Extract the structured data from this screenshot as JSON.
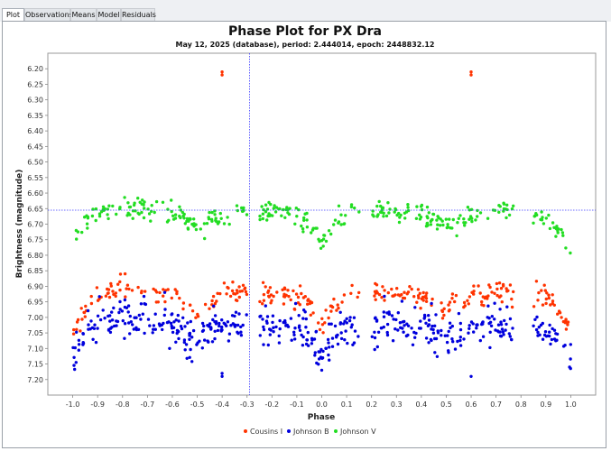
{
  "tabs": [
    {
      "label": "Plot",
      "active": true
    },
    {
      "label": "Observations",
      "active": false
    },
    {
      "label": "Means",
      "active": false
    },
    {
      "label": "Model",
      "active": false
    },
    {
      "label": "Residuals",
      "active": false
    }
  ],
  "chart_data": {
    "type": "scatter",
    "title": "Phase Plot for PX Dra",
    "subtitle": "May 12, 2025 (database), period: 2.444014, epoch: 2448832.12",
    "xlabel": "Phase",
    "ylabel": "Brightness (magnitude)",
    "xlim": [
      -1.1,
      1.1
    ],
    "ylim": [
      6.15,
      7.25
    ],
    "y_inverted": true,
    "xticks": [
      -1.0,
      -0.9,
      -0.8,
      -0.7,
      -0.6,
      -0.5,
      -0.4,
      -0.3,
      -0.2,
      -0.1,
      0.0,
      0.1,
      0.2,
      0.3,
      0.4,
      0.5,
      0.6,
      0.7,
      0.8,
      0.9,
      1.0
    ],
    "xtick_labels": [
      "-1.0",
      "-0.9",
      "-0.8",
      "-0.7",
      "-0.6",
      "-0.5",
      "-0.4",
      "-0.3",
      "-0.2",
      "-0.1",
      "0.0",
      "0.1",
      "0.2",
      "0.3",
      "0.4",
      "0.5",
      "0.6",
      "0.7",
      "0.8",
      "0.9",
      "1.0"
    ],
    "yticks": [
      6.2,
      6.25,
      6.3,
      6.35,
      6.4,
      6.45,
      6.5,
      6.55,
      6.6,
      6.65,
      6.7,
      6.75,
      6.8,
      6.85,
      6.9,
      6.95,
      7.0,
      7.05,
      7.1,
      7.15,
      7.2
    ],
    "ytick_labels": [
      "6.20",
      "6.25",
      "6.30",
      "6.35",
      "6.40",
      "6.45",
      "6.50",
      "6.55",
      "6.60",
      "6.65",
      "6.70",
      "6.75",
      "6.80",
      "6.85",
      "6.90",
      "6.95",
      "7.00",
      "7.05",
      "7.10",
      "7.15",
      "7.20"
    ],
    "crosshair": {
      "x": -0.29,
      "y": 6.655
    },
    "legend_position": "bottom-center",
    "grid": false,
    "series": [
      {
        "name": "Cousins I",
        "color": "#ff3300",
        "profile": [
          [
            -1.0,
            7.03
          ],
          [
            -0.98,
            7.02
          ],
          [
            -0.95,
            6.98
          ],
          [
            -0.92,
            6.93
          ],
          [
            -0.85,
            6.915
          ],
          [
            -0.8,
            6.91
          ],
          [
            -0.72,
            6.915
          ],
          [
            -0.65,
            6.92
          ],
          [
            -0.6,
            6.93
          ],
          [
            -0.55,
            6.95
          ],
          [
            -0.52,
            6.97
          ],
          [
            -0.5,
            6.99
          ],
          [
            -0.48,
            6.97
          ],
          [
            -0.45,
            6.95
          ],
          [
            -0.4,
            6.93
          ],
          [
            -0.3,
            6.92
          ],
          [
            -0.2,
            6.925
          ],
          [
            -0.1,
            6.93
          ],
          [
            -0.05,
            6.96
          ],
          [
            -0.02,
            7.0
          ],
          [
            0.0,
            7.035
          ],
          [
            0.02,
            7.0
          ],
          [
            0.05,
            6.96
          ],
          [
            0.1,
            6.93
          ],
          [
            0.2,
            6.92
          ],
          [
            0.3,
            6.92
          ],
          [
            0.4,
            6.925
          ],
          [
            0.45,
            6.95
          ],
          [
            0.48,
            6.97
          ],
          [
            0.5,
            6.99
          ],
          [
            0.52,
            6.97
          ],
          [
            0.55,
            6.95
          ],
          [
            0.6,
            6.93
          ],
          [
            0.7,
            6.92
          ],
          [
            0.8,
            6.915
          ],
          [
            0.9,
            6.93
          ],
          [
            0.95,
            6.97
          ],
          [
            1.0,
            7.03
          ]
        ],
        "gaps": [
          [
            -0.3,
            -0.25
          ],
          [
            0.15,
            0.2
          ],
          [
            0.77,
            0.85
          ]
        ],
        "count": 300,
        "scatter": 0.018,
        "extra_points": [
          [
            -0.4,
            6.21
          ],
          [
            -0.4,
            6.22
          ],
          [
            0.6,
            6.21
          ],
          [
            0.6,
            6.22
          ]
        ]
      },
      {
        "name": "Johnson B",
        "color": "#0000dd",
        "profile": [
          [
            -1.0,
            7.15
          ],
          [
            -0.98,
            7.1
          ],
          [
            -0.95,
            7.05
          ],
          [
            -0.9,
            7.02
          ],
          [
            -0.85,
            7.01
          ],
          [
            -0.8,
            7.0
          ],
          [
            -0.72,
            7.01
          ],
          [
            -0.65,
            7.02
          ],
          [
            -0.6,
            7.03
          ],
          [
            -0.55,
            7.05
          ],
          [
            -0.52,
            7.07
          ],
          [
            -0.5,
            7.08
          ],
          [
            -0.48,
            7.06
          ],
          [
            -0.45,
            7.04
          ],
          [
            -0.4,
            7.03
          ],
          [
            -0.3,
            7.02
          ],
          [
            -0.2,
            7.025
          ],
          [
            -0.1,
            7.03
          ],
          [
            -0.05,
            7.06
          ],
          [
            -0.02,
            7.1
          ],
          [
            0.0,
            7.13
          ],
          [
            0.02,
            7.1
          ],
          [
            0.05,
            7.06
          ],
          [
            0.1,
            7.03
          ],
          [
            0.2,
            7.02
          ],
          [
            0.3,
            7.02
          ],
          [
            0.4,
            7.025
          ],
          [
            0.45,
            7.05
          ],
          [
            0.48,
            7.07
          ],
          [
            0.5,
            7.08
          ],
          [
            0.52,
            7.06
          ],
          [
            0.55,
            7.05
          ],
          [
            0.6,
            7.03
          ],
          [
            0.7,
            7.02
          ],
          [
            0.8,
            7.02
          ],
          [
            0.9,
            7.04
          ],
          [
            0.95,
            7.08
          ],
          [
            1.0,
            7.13
          ]
        ],
        "gaps": [
          [
            -0.3,
            -0.25
          ],
          [
            0.15,
            0.2
          ],
          [
            0.77,
            0.85
          ]
        ],
        "count": 480,
        "scatter": 0.032,
        "extra_points": [
          [
            -0.4,
            7.19
          ],
          [
            -0.4,
            7.18
          ],
          [
            0.6,
            7.19
          ],
          [
            0.0,
            7.17
          ]
        ]
      },
      {
        "name": "Johnson V",
        "color": "#22dd22",
        "profile": [
          [
            -1.0,
            6.78
          ],
          [
            -0.98,
            6.74
          ],
          [
            -0.95,
            6.7
          ],
          [
            -0.92,
            6.67
          ],
          [
            -0.85,
            6.655
          ],
          [
            -0.8,
            6.645
          ],
          [
            -0.72,
            6.65
          ],
          [
            -0.65,
            6.66
          ],
          [
            -0.6,
            6.67
          ],
          [
            -0.55,
            6.69
          ],
          [
            -0.52,
            6.7
          ],
          [
            -0.5,
            6.705
          ],
          [
            -0.48,
            6.7
          ],
          [
            -0.45,
            6.69
          ],
          [
            -0.4,
            6.67
          ],
          [
            -0.3,
            6.655
          ],
          [
            -0.2,
            6.66
          ],
          [
            -0.1,
            6.67
          ],
          [
            -0.05,
            6.7
          ],
          [
            -0.02,
            6.74
          ],
          [
            0.0,
            6.77
          ],
          [
            0.02,
            6.74
          ],
          [
            0.05,
            6.7
          ],
          [
            0.1,
            6.67
          ],
          [
            0.2,
            6.655
          ],
          [
            0.3,
            6.655
          ],
          [
            0.4,
            6.67
          ],
          [
            0.45,
            6.69
          ],
          [
            0.48,
            6.7
          ],
          [
            0.5,
            6.705
          ],
          [
            0.52,
            6.7
          ],
          [
            0.55,
            6.69
          ],
          [
            0.6,
            6.67
          ],
          [
            0.7,
            6.655
          ],
          [
            0.8,
            6.66
          ],
          [
            0.9,
            6.68
          ],
          [
            0.95,
            6.72
          ],
          [
            1.0,
            6.78
          ]
        ],
        "gaps": [
          [
            -0.3,
            -0.25
          ],
          [
            0.15,
            0.2
          ],
          [
            0.77,
            0.85
          ]
        ],
        "count": 340,
        "scatter": 0.017,
        "extra_points": []
      }
    ]
  }
}
